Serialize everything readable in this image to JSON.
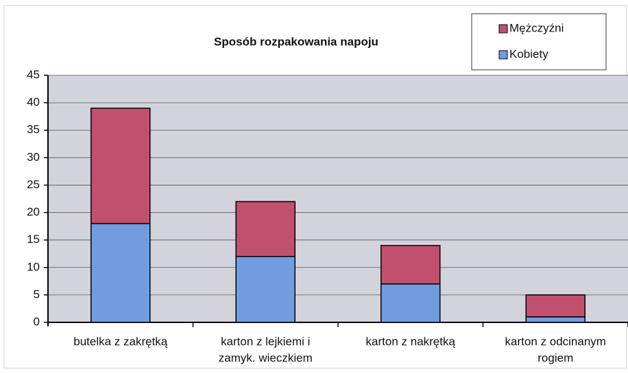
{
  "chart_data": {
    "type": "stacked_bar",
    "title": "Sposób rozpakowania napoju",
    "categories": [
      [
        "butelka z zakrętką"
      ],
      [
        "karton z lejkiemi i",
        "zamyk. wieczkiem"
      ],
      [
        "karton z nakrętką"
      ],
      [
        "karton z odcinanym",
        "rogiem"
      ]
    ],
    "series": [
      {
        "name": "Kobiety",
        "color": "#6f9de0",
        "values": [
          18,
          12,
          7,
          1
        ]
      },
      {
        "name": "Mężczyźni",
        "color": "#c1506f",
        "values": [
          21,
          10,
          7,
          4
        ]
      }
    ],
    "ylim": [
      0,
      45
    ],
    "yticks": [
      0,
      5,
      10,
      15,
      20,
      25,
      30,
      35,
      40,
      45
    ],
    "grid": true,
    "legend": "top-right"
  }
}
